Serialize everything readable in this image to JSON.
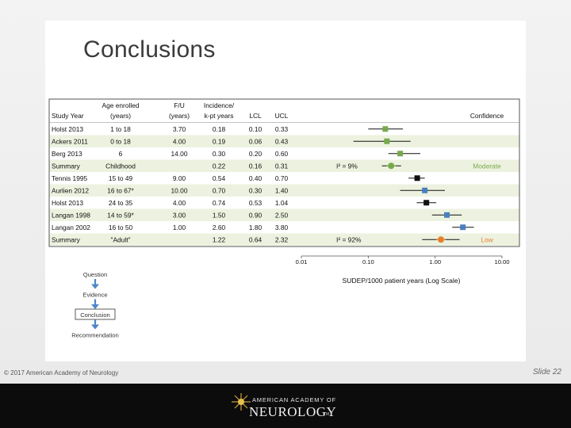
{
  "slide": {
    "title": "Conclusions",
    "footer_left": "© 2017 American Academy of Neurology",
    "footer_right": "Slide 22",
    "brand_line1": "AMERICAN ACADEMY OF",
    "brand_line2": "NEUROLOGY",
    "brand_tm": "TM"
  },
  "chart_data": {
    "type": "table",
    "plot_kind": "forest",
    "columns": [
      "Study Year",
      "Age enrolled (years)",
      "F/U (years)",
      "Incidence/ k-pt years",
      "LCL",
      "UCL"
    ],
    "header_lines": [
      [
        "",
        "Age enrolled",
        "F/U",
        "Incidence/",
        "",
        ""
      ],
      [
        "Study Year",
        "(years)",
        "(years)",
        "k-pt years",
        "LCL",
        "UCL"
      ]
    ],
    "rows": [
      {
        "study": "Holst 2013",
        "age": "1 to 18",
        "fu": "3.70",
        "inc": "0.18",
        "lcl": "0.10",
        "ucl": "0.33",
        "est": 0.18,
        "lo": 0.1,
        "hi": 0.33,
        "marker": "square",
        "color": "#77a94a",
        "shade": false
      },
      {
        "study": "Ackers 2011",
        "age": "0 to 18",
        "fu": "4.00",
        "inc": "0.19",
        "lcl": "0.06",
        "ucl": "0.43",
        "est": 0.19,
        "lo": 0.06,
        "hi": 0.43,
        "marker": "square",
        "color": "#77a94a",
        "shade": true
      },
      {
        "study": "Berg 2013",
        "age": "6",
        "fu": "14.00",
        "inc": "0.30",
        "lcl": "0.20",
        "ucl": "0.60",
        "est": 0.3,
        "lo": 0.2,
        "hi": 0.6,
        "marker": "square",
        "color": "#77a94a",
        "shade": false
      },
      {
        "study": "Summary",
        "age": "Childhood",
        "fu": "",
        "inc": "0.22",
        "lcl": "0.16",
        "ucl": "0.31",
        "est": 0.22,
        "lo": 0.16,
        "hi": 0.31,
        "marker": "circle",
        "color": "#77a94a",
        "shade": true
      },
      {
        "study": "Tennis 1995",
        "age": "15 to 49",
        "fu": "9.00",
        "inc": "0.54",
        "lcl": "0.40",
        "ucl": "0.70",
        "est": 0.54,
        "lo": 0.4,
        "hi": 0.7,
        "marker": "square",
        "color": "#111111",
        "shade": false
      },
      {
        "study": "Aurlien 2012",
        "age": "16 to 67*",
        "fu": "10.00",
        "inc": "0.70",
        "lcl": "0.30",
        "ucl": "1.40",
        "est": 0.7,
        "lo": 0.3,
        "hi": 1.4,
        "marker": "square",
        "color": "#4a7ec0",
        "shade": true
      },
      {
        "study": "Holst 2013",
        "age": "24 to 35",
        "fu": "4.00",
        "inc": "0.74",
        "lcl": "0.53",
        "ucl": "1.04",
        "est": 0.74,
        "lo": 0.53,
        "hi": 1.04,
        "marker": "square",
        "color": "#111111",
        "shade": false
      },
      {
        "study": "Langan 1998",
        "age": "14 to 59*",
        "fu": "3.00",
        "inc": "1.50",
        "lcl": "0.90",
        "ucl": "2.50",
        "est": 1.5,
        "lo": 0.9,
        "hi": 2.5,
        "marker": "square",
        "color": "#4a7ec0",
        "shade": true
      },
      {
        "study": "Langan 2002",
        "age": "16 to 50",
        "fu": "1.00",
        "inc": "2.60",
        "lcl": "1.80",
        "ucl": "3.80",
        "est": 2.6,
        "lo": 1.8,
        "hi": 3.8,
        "marker": "square",
        "color": "#4a7ec0",
        "shade": false
      },
      {
        "study": "Summary",
        "age": "\"Adult\"",
        "fu": "",
        "inc": "1.22",
        "lcl": "0.64",
        "ucl": "2.32",
        "est": 1.22,
        "lo": 0.64,
        "hi": 2.32,
        "marker": "circle",
        "color": "#e8802a",
        "shade": true
      }
    ],
    "x_scale": "log",
    "xlim": [
      0.01,
      10.0
    ],
    "x_ticks": [
      "0.01",
      "0.10",
      "1.00",
      "10.00"
    ],
    "x_tick_values": [
      0.01,
      0.1,
      1.0,
      10.0
    ],
    "xlabel": "SUDEP/1000 patient years (Log Scale)",
    "confidence_header": "Confidence",
    "annotations": [
      {
        "row": 3,
        "i2_text": "I² = 9%",
        "confidence": "Moderate",
        "conf_color": "#77a94a"
      },
      {
        "row": 9,
        "i2_text": "I² = 92%",
        "confidence": "Low",
        "conf_color": "#e8802a"
      }
    ]
  },
  "flow": {
    "steps": [
      "Question",
      "Evidence",
      "Conclusion",
      "Recommendation"
    ],
    "highlight_index": 2,
    "arrow_color": "#4f86c6"
  }
}
